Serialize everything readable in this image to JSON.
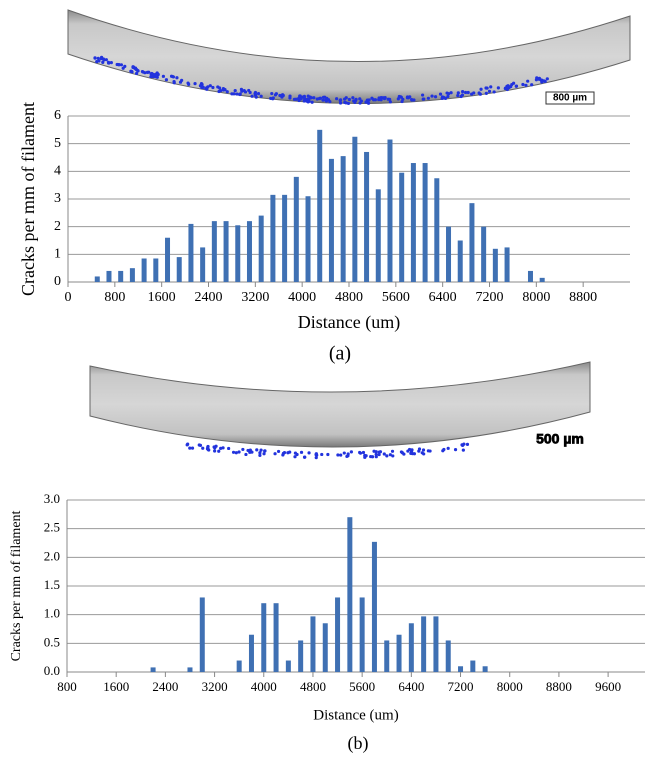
{
  "figures": [
    {
      "scale_bar": "800 µm",
      "caption": "(a)"
    },
    {
      "scale_bar": "500 µm",
      "caption": "(b)"
    }
  ],
  "chart_data": [
    {
      "type": "bar",
      "x_label": "Distance (um)",
      "y_label": "Cracks per mm of filament",
      "color": "#3f70b3",
      "grid": true,
      "x": [
        500,
        700,
        900,
        1100,
        1300,
        1500,
        1700,
        1900,
        2100,
        2300,
        2500,
        2700,
        2900,
        3100,
        3300,
        3500,
        3700,
        3900,
        4100,
        4300,
        4500,
        4700,
        4900,
        5100,
        5300,
        5500,
        5700,
        5900,
        6100,
        6300,
        6500,
        6700,
        6900,
        7100,
        7300,
        7500,
        7900,
        8100
      ],
      "values": [
        0.2,
        0.4,
        0.4,
        0.5,
        0.85,
        0.85,
        1.6,
        0.9,
        2.1,
        1.25,
        2.2,
        2.2,
        2.05,
        2.2,
        2.4,
        3.15,
        3.15,
        3.8,
        3.1,
        5.5,
        4.45,
        4.55,
        5.25,
        4.7,
        3.35,
        5.15,
        3.95,
        4.3,
        4.3,
        3.75,
        2.0,
        1.5,
        2.85,
        2.0,
        1.2,
        1.25,
        0.4,
        0.15
      ],
      "xlim": [
        0,
        9600
      ],
      "xticks": [
        0,
        800,
        1600,
        2400,
        3200,
        4000,
        4800,
        5600,
        6400,
        7200,
        8000,
        8800
      ],
      "ylim": [
        0,
        6
      ],
      "yticks": [
        0,
        1,
        2,
        3,
        4,
        5,
        6
      ]
    },
    {
      "type": "bar",
      "x_label": "Distance (um)",
      "y_label": "Cracks per mm of filament",
      "color": "#3f70b3",
      "grid": true,
      "x": [
        2200,
        2800,
        3000,
        3600,
        3800,
        4000,
        4200,
        4400,
        4600,
        4800,
        5000,
        5200,
        5400,
        5600,
        5800,
        6000,
        6200,
        6400,
        6600,
        6800,
        7000,
        7200,
        7400,
        7600
      ],
      "values": [
        0.08,
        0.08,
        1.3,
        0.2,
        0.65,
        1.2,
        1.2,
        0.2,
        0.55,
        0.97,
        0.85,
        1.3,
        2.7,
        1.3,
        2.27,
        0.55,
        0.65,
        0.85,
        0.97,
        0.97,
        0.55,
        0.1,
        0.2,
        0.1
      ],
      "xlim": [
        800,
        10200
      ],
      "xticks": [
        800,
        1600,
        2400,
        3200,
        4000,
        4800,
        5600,
        6400,
        7200,
        8000,
        8800,
        9600
      ],
      "ylim": [
        0,
        3
      ],
      "yticks": [
        {
          "value": 0,
          "label": "0.0"
        },
        {
          "value": 0.5,
          "label": "0.5"
        },
        {
          "value": 1,
          "label": "1.0"
        },
        {
          "value": 1.5,
          "label": "1.5"
        },
        {
          "value": 2,
          "label": "2.0"
        },
        {
          "value": 2.5,
          "label": "2.5"
        },
        {
          "value": 3,
          "label": "3.0"
        }
      ]
    }
  ]
}
